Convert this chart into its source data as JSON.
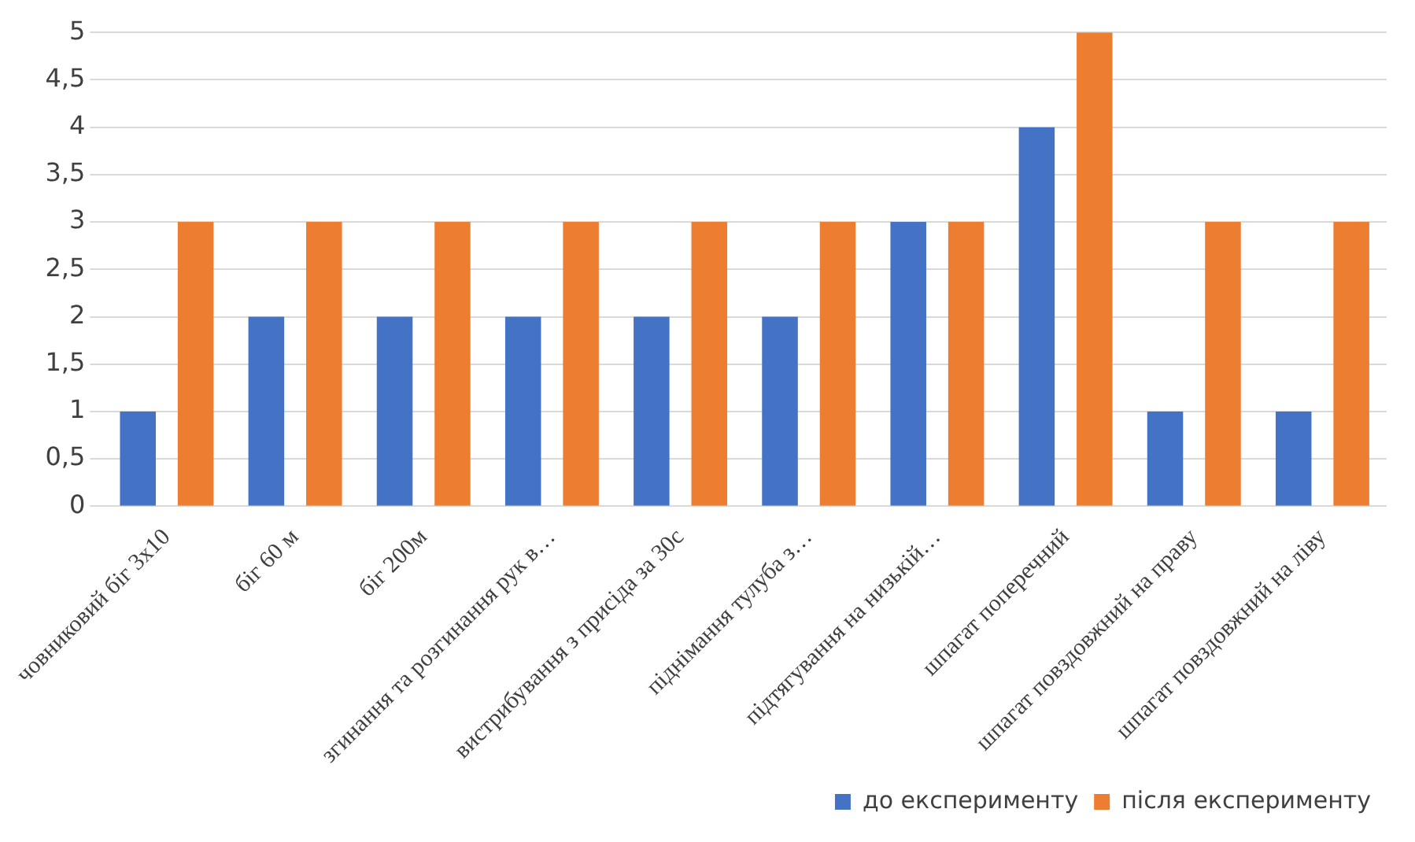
{
  "chart_data": {
    "type": "bar",
    "categories": [
      "човниковий біг 3х10",
      "біг 60 м",
      "біг 200м",
      "згинання та розгинання рук в…",
      "вистрибування з присіда за 30с",
      "піднімання тулуба з…",
      "підтягування на низькій…",
      "шпагат поперечний",
      "шпагат повздовжний на праву",
      "шпагат повздовжний на ліву"
    ],
    "series": [
      {
        "name": "до експерименту",
        "color": "#4472c4",
        "values": [
          1,
          2,
          2,
          2,
          2,
          2,
          3,
          4,
          1,
          1
        ]
      },
      {
        "name": "після експерименту",
        "color": "#ed7d31",
        "values": [
          3,
          3,
          3,
          3,
          3,
          3,
          3,
          5,
          3,
          3
        ]
      }
    ],
    "ylim": [
      0,
      5
    ],
    "yticks": [
      0,
      {
        "value": 0.5,
        "label": "0,5"
      },
      1,
      {
        "value": 1.5,
        "label": "1,5"
      },
      2,
      {
        "value": 2.5,
        "label": "2,5"
      },
      3,
      {
        "value": 3.5,
        "label": "3,5"
      },
      4,
      {
        "value": 4.5,
        "label": "4,5"
      },
      5
    ],
    "grid": "y",
    "legend": "bottom"
  }
}
